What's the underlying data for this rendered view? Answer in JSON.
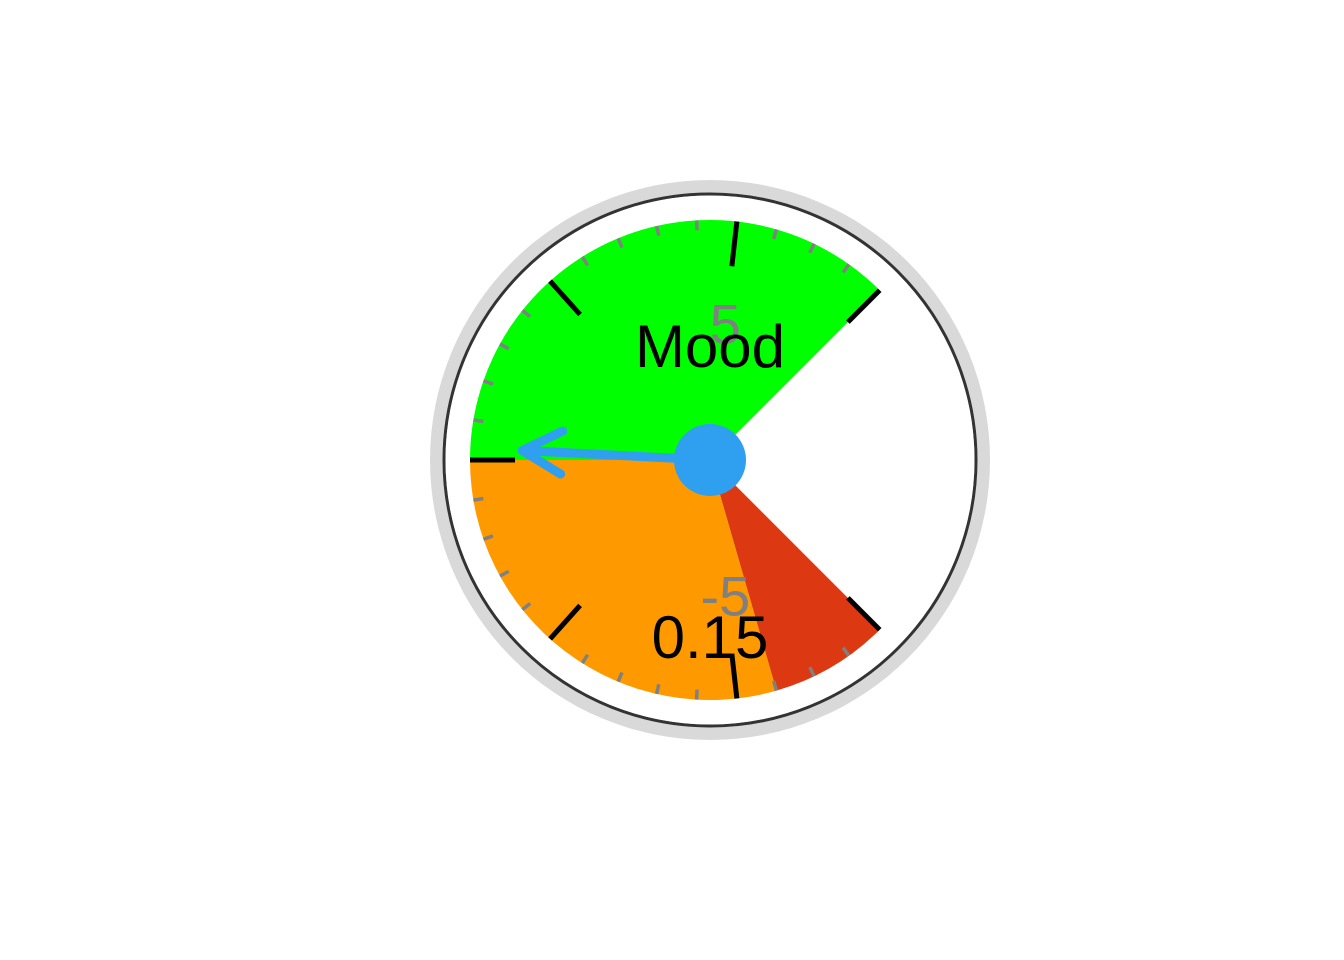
{
  "chart_data": {
    "type": "gauge",
    "title": "Mood",
    "value": 0.15,
    "value_label": "0.15",
    "min": -7,
    "max": 7,
    "sweep_degrees": 270,
    "major_ticks": [
      -7,
      -5,
      -2.5,
      0,
      2.5,
      5,
      7
    ],
    "minor_tick_step": 0.5,
    "tick_labels": [
      {
        "value": -5,
        "text": "-5"
      },
      {
        "value": 5,
        "text": "5"
      }
    ],
    "bands": [
      {
        "from": -7,
        "to": -5.5,
        "color": "#dc3912"
      },
      {
        "from": -5.5,
        "to": 0,
        "color": "#ff9900"
      },
      {
        "from": 0,
        "to": 7,
        "color": "#00ff00"
      }
    ],
    "colors": {
      "bezel": "#d9d9d9",
      "rim": "#333333",
      "face": "#ffffff",
      "needle": "#2f9ff0",
      "major_tick": "#000000",
      "minor_tick": "#808080",
      "label": "#808080",
      "text": "#000000"
    }
  }
}
